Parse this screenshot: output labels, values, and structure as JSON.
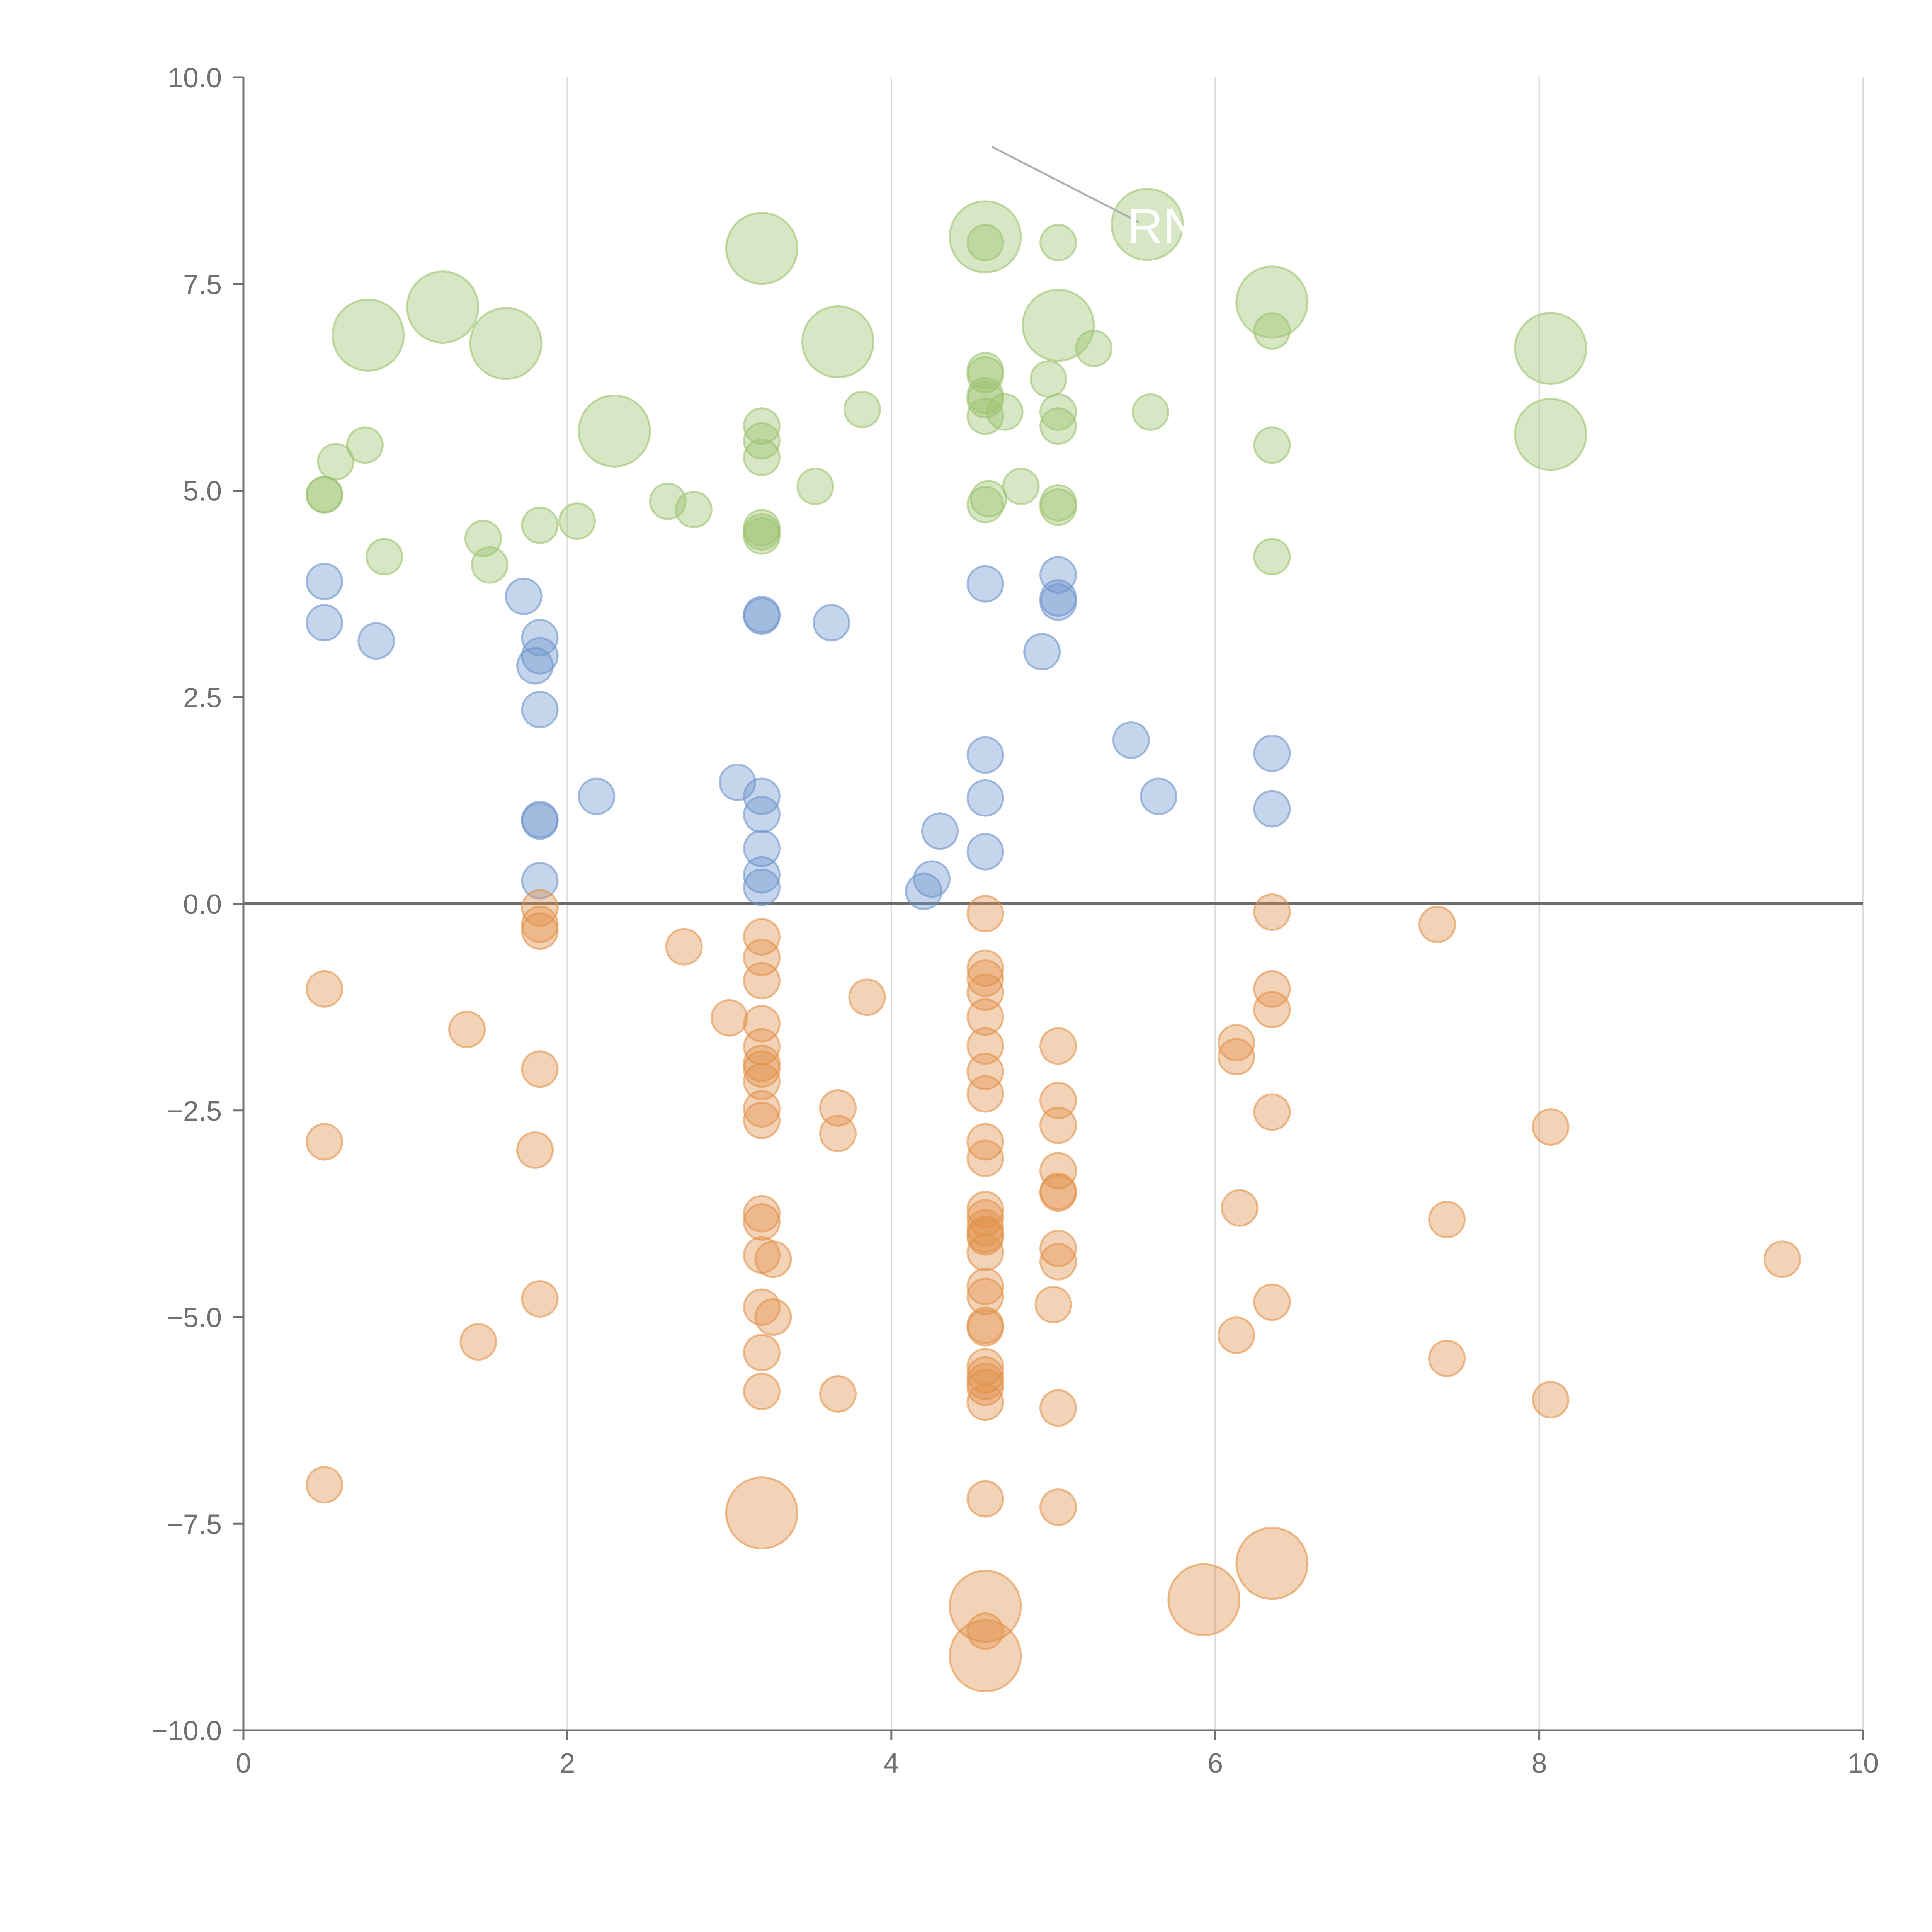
{
  "chart_data": {
    "type": "scatter",
    "title": "",
    "xlabel": "",
    "ylabel": "",
    "xlim": [
      0,
      10
    ],
    "ylim": [
      -10,
      10
    ],
    "x_ticks": [
      0,
      2,
      4,
      6,
      8,
      10
    ],
    "y_ticks": [
      -10,
      -7.5,
      -5,
      -2.5,
      0,
      2.5,
      5,
      7.5,
      10
    ],
    "x_tick_labels": [
      "0",
      "2",
      "4",
      "6",
      "8",
      "10"
    ],
    "y_tick_labels": [
      "−10.0",
      "−7.5",
      "−5.0",
      "−2.5",
      "0.0",
      "2.5",
      "5.0",
      "7.5",
      "10.0"
    ],
    "vertical_gridlines": true,
    "zero_line": true,
    "colors": {
      "upper": "#9cc36e",
      "middle": "#6f95cc",
      "lower": "#e2924a",
      "axis": "#707070",
      "grid": "#dddddd",
      "zero_line": "#6a6a6a",
      "label": "#ffffff"
    },
    "series": [
      {
        "name": "upper",
        "points": [
          [
            0.5,
            4.95,
            1
          ],
          [
            0.5,
            4.95,
            1
          ],
          [
            0.57,
            5.35,
            1
          ],
          [
            0.75,
            5.55,
            1
          ],
          [
            0.87,
            4.2,
            1
          ],
          [
            1.48,
            4.42,
            1
          ],
          [
            1.52,
            4.1,
            1
          ],
          [
            1.83,
            4.58,
            1
          ],
          [
            2.06,
            4.63,
            1
          ],
          [
            2.62,
            4.87,
            1
          ],
          [
            2.78,
            4.77,
            1
          ],
          [
            3.2,
            5.78,
            1
          ],
          [
            3.2,
            5.6,
            1
          ],
          [
            3.2,
            5.4,
            1
          ],
          [
            3.2,
            4.55,
            1
          ],
          [
            3.2,
            4.5,
            1
          ],
          [
            3.2,
            4.45,
            1
          ],
          [
            3.53,
            5.05,
            1
          ],
          [
            3.82,
            5.98,
            1
          ],
          [
            4.58,
            8.0,
            1
          ],
          [
            4.58,
            6.45,
            1
          ],
          [
            4.58,
            6.4,
            1
          ],
          [
            4.58,
            6.15,
            1
          ],
          [
            4.58,
            6.1,
            1
          ],
          [
            4.58,
            5.9,
            1
          ],
          [
            4.7,
            5.95,
            1
          ],
          [
            4.6,
            4.9,
            1
          ],
          [
            4.58,
            4.83,
            1
          ],
          [
            4.8,
            5.05,
            1
          ],
          [
            5.03,
            8.0,
            1
          ],
          [
            4.97,
            6.35,
            1
          ],
          [
            5.03,
            5.95,
            1
          ],
          [
            5.03,
            5.78,
            1
          ],
          [
            5.03,
            4.85,
            1
          ],
          [
            5.03,
            4.8,
            1
          ],
          [
            5.25,
            6.72,
            1
          ],
          [
            5.6,
            5.95,
            1
          ],
          [
            6.35,
            6.93,
            1
          ],
          [
            6.35,
            5.55,
            1
          ],
          [
            6.35,
            4.2,
            1
          ],
          [
            0.77,
            6.88,
            2
          ],
          [
            1.23,
            7.22,
            2
          ],
          [
            1.62,
            6.78,
            2
          ],
          [
            2.29,
            5.72,
            2
          ],
          [
            3.2,
            7.93,
            2
          ],
          [
            3.67,
            6.8,
            2
          ],
          [
            4.58,
            8.07,
            2
          ],
          [
            5.03,
            7.0,
            2
          ],
          [
            5.58,
            8.22,
            2
          ],
          [
            6.35,
            7.28,
            2
          ],
          [
            8.07,
            6.72,
            2
          ],
          [
            8.07,
            5.68,
            2
          ]
        ]
      },
      {
        "name": "middle",
        "points": [
          [
            0.5,
            3.9,
            1
          ],
          [
            0.5,
            3.4,
            1
          ],
          [
            0.82,
            3.18,
            1
          ],
          [
            1.73,
            3.72,
            1
          ],
          [
            1.83,
            3.22,
            1
          ],
          [
            1.83,
            3.0,
            1
          ],
          [
            1.8,
            2.88,
            1
          ],
          [
            1.83,
            2.35,
            1
          ],
          [
            1.83,
            1.02,
            1
          ],
          [
            1.83,
            1.0,
            1
          ],
          [
            1.83,
            0.28,
            1
          ],
          [
            2.18,
            1.3,
            1
          ],
          [
            3.05,
            1.47,
            1
          ],
          [
            3.2,
            1.3,
            1
          ],
          [
            3.2,
            1.08,
            1
          ],
          [
            3.2,
            0.67,
            1
          ],
          [
            3.2,
            0.35,
            1
          ],
          [
            3.2,
            0.2,
            1
          ],
          [
            3.2,
            3.5,
            1
          ],
          [
            3.2,
            3.48,
            1
          ],
          [
            3.63,
            3.4,
            1
          ],
          [
            4.2,
            0.15,
            1
          ],
          [
            4.25,
            0.3,
            1
          ],
          [
            4.3,
            0.88,
            1
          ],
          [
            4.58,
            3.87,
            1
          ],
          [
            4.58,
            1.8,
            1
          ],
          [
            4.58,
            1.28,
            1
          ],
          [
            4.58,
            0.63,
            1
          ],
          [
            4.93,
            3.05,
            1
          ],
          [
            5.03,
            3.98,
            1
          ],
          [
            5.03,
            3.7,
            1
          ],
          [
            5.03,
            3.65,
            1
          ],
          [
            5.48,
            1.98,
            1
          ],
          [
            5.65,
            1.3,
            1
          ],
          [
            6.35,
            1.82,
            1
          ],
          [
            6.35,
            1.15,
            1
          ]
        ]
      },
      {
        "name": "lower",
        "points": [
          [
            0.5,
            -1.03,
            1
          ],
          [
            0.5,
            -2.88,
            1
          ],
          [
            0.5,
            -7.03,
            1
          ],
          [
            1.38,
            -1.52,
            1
          ],
          [
            1.45,
            -5.3,
            1
          ],
          [
            1.83,
            -0.05,
            1
          ],
          [
            1.83,
            -0.25,
            1
          ],
          [
            1.83,
            -0.33,
            1
          ],
          [
            1.83,
            -2.0,
            1
          ],
          [
            1.8,
            -2.98,
            1
          ],
          [
            1.83,
            -4.78,
            1
          ],
          [
            2.72,
            -0.52,
            1
          ],
          [
            3.0,
            -1.38,
            1
          ],
          [
            3.2,
            -0.4,
            1
          ],
          [
            3.2,
            -0.65,
            1
          ],
          [
            3.2,
            -0.93,
            1
          ],
          [
            3.2,
            -1.45,
            1
          ],
          [
            3.2,
            -1.73,
            1
          ],
          [
            3.2,
            -1.93,
            1
          ],
          [
            3.2,
            -2.0,
            1
          ],
          [
            3.2,
            -2.15,
            1
          ],
          [
            3.2,
            -2.48,
            1
          ],
          [
            3.2,
            -2.62,
            1
          ],
          [
            3.2,
            -3.75,
            1
          ],
          [
            3.2,
            -3.85,
            1
          ],
          [
            3.2,
            -4.25,
            1
          ],
          [
            3.27,
            -4.3,
            1
          ],
          [
            3.2,
            -4.88,
            1
          ],
          [
            3.27,
            -5.0,
            1
          ],
          [
            3.2,
            -5.43,
            1
          ],
          [
            3.2,
            -5.9,
            1
          ],
          [
            3.67,
            -2.47,
            1
          ],
          [
            3.67,
            -2.78,
            1
          ],
          [
            3.67,
            -5.93,
            1
          ],
          [
            3.85,
            -1.13,
            1
          ],
          [
            4.58,
            -0.12,
            1
          ],
          [
            4.58,
            -0.78,
            1
          ],
          [
            4.58,
            -0.9,
            1
          ],
          [
            4.58,
            -1.07,
            1
          ],
          [
            4.58,
            -1.37,
            1
          ],
          [
            4.58,
            -1.72,
            1
          ],
          [
            4.58,
            -2.03,
            1
          ],
          [
            4.58,
            -2.3,
            1
          ],
          [
            4.58,
            -2.88,
            1
          ],
          [
            4.58,
            -3.08,
            1
          ],
          [
            4.58,
            -3.7,
            1
          ],
          [
            4.58,
            -3.8,
            1
          ],
          [
            4.58,
            -3.92,
            1
          ],
          [
            4.58,
            -4.0,
            1
          ],
          [
            4.58,
            -4.03,
            1
          ],
          [
            4.58,
            -4.22,
            1
          ],
          [
            4.58,
            -4.63,
            1
          ],
          [
            4.58,
            -4.75,
            1
          ],
          [
            4.58,
            -5.1,
            1
          ],
          [
            4.58,
            -5.13,
            1
          ],
          [
            4.58,
            -5.6,
            1
          ],
          [
            4.58,
            -5.7,
            1
          ],
          [
            4.58,
            -5.78,
            1
          ],
          [
            4.58,
            -5.85,
            1
          ],
          [
            4.58,
            -6.03,
            1
          ],
          [
            4.58,
            -7.2,
            1
          ],
          [
            4.58,
            -8.8,
            1
          ],
          [
            5.03,
            -1.72,
            1
          ],
          [
            5.03,
            -2.38,
            1
          ],
          [
            5.03,
            -2.68,
            1
          ],
          [
            5.03,
            -3.23,
            1
          ],
          [
            5.03,
            -3.48,
            1
          ],
          [
            5.03,
            -3.5,
            1
          ],
          [
            5.03,
            -4.17,
            1
          ],
          [
            5.03,
            -4.33,
            1
          ],
          [
            5.0,
            -4.85,
            1
          ],
          [
            5.03,
            -6.1,
            1
          ],
          [
            5.03,
            -7.3,
            1
          ],
          [
            6.13,
            -1.68,
            1
          ],
          [
            6.13,
            -1.85,
            1
          ],
          [
            6.15,
            -3.68,
            1
          ],
          [
            6.13,
            -5.22,
            1
          ],
          [
            6.35,
            -0.1,
            1
          ],
          [
            6.35,
            -1.03,
            1
          ],
          [
            6.35,
            -1.28,
            1
          ],
          [
            6.35,
            -2.52,
            1
          ],
          [
            6.35,
            -4.82,
            1
          ],
          [
            7.37,
            -0.25,
            1
          ],
          [
            7.43,
            -3.82,
            1
          ],
          [
            7.43,
            -5.5,
            1
          ],
          [
            8.07,
            -2.7,
            1
          ],
          [
            8.07,
            -6.0,
            1
          ],
          [
            9.5,
            -4.3,
            1
          ],
          [
            3.2,
            -7.37,
            2
          ],
          [
            4.58,
            -8.5,
            2
          ],
          [
            4.58,
            -9.1,
            2
          ],
          [
            5.93,
            -8.42,
            2
          ],
          [
            6.35,
            -7.98,
            2
          ]
        ]
      }
    ],
    "annotations": [
      {
        "text": "RN",
        "x": 5.6,
        "y": 8.2
      }
    ]
  }
}
